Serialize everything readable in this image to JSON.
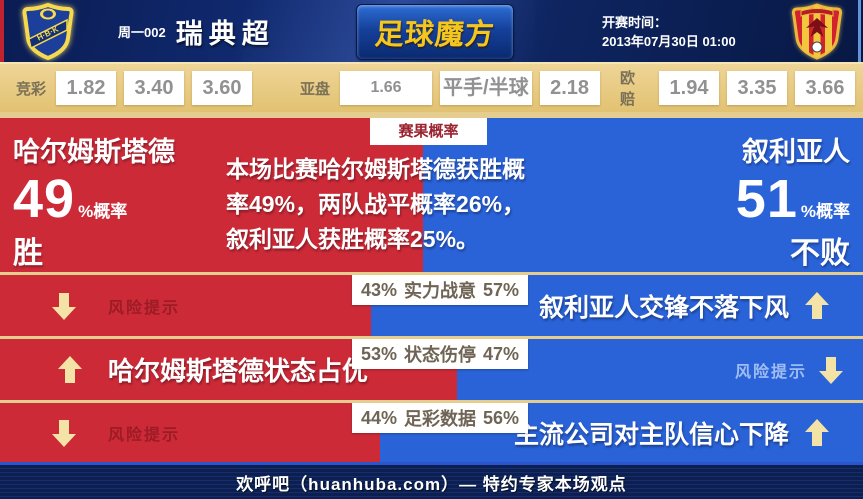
{
  "header": {
    "match_code": "周一002",
    "league": "瑞典超",
    "logo_text": "足球魔方",
    "kickoff_label": "开赛时间：",
    "kickoff_time": "2013年07月30日 01:00",
    "home_badge_icon": "halmstads-crest",
    "away_badge_icon": "syrianska-crest"
  },
  "odds_bar": {
    "groups": [
      {
        "label": "竞彩",
        "values": [
          "1.82",
          "3.40",
          "3.60"
        ]
      },
      {
        "label": "亚盘",
        "values": [
          "1.66",
          "平手/半球",
          "2.18"
        ]
      },
      {
        "label": "欧赔",
        "values": [
          "1.94",
          "3.35",
          "3.66"
        ]
      }
    ]
  },
  "result_section": {
    "badge": "赛果概率",
    "home": {
      "name": "哈尔姆斯塔德",
      "percent": "49",
      "suffix": "%概率",
      "outcome": "胜",
      "width": 49
    },
    "away": {
      "name": "叙利亚人",
      "percent": "51",
      "suffix": "%概率",
      "outcome": "不败",
      "width": 51
    },
    "summary": "本场比赛哈尔姆斯塔德获胜概率49%，两队战平概率26%，叙利亚人获胜概率25%。"
  },
  "factor_rows": [
    {
      "home_pct": "43%",
      "name": "实力战意",
      "away_pct": "57%",
      "home_width": 43,
      "message": "叙利亚人交锋不落下风",
      "message_side": "away",
      "message_arrow": "up-arrow",
      "risk_label": "风险提示",
      "risk_side": "home",
      "risk_arrow": "down-arrow"
    },
    {
      "home_pct": "53%",
      "name": "状态伤停",
      "away_pct": "47%",
      "home_width": 53,
      "message": "哈尔姆斯塔德状态占优",
      "message_side": "home",
      "message_arrow": "up-arrow",
      "risk_label": "风险提示",
      "risk_side": "away",
      "risk_arrow": "down-arrow"
    },
    {
      "home_pct": "44%",
      "name": "足彩数据",
      "away_pct": "56%",
      "home_width": 44,
      "message": "主流公司对主队信心下降",
      "message_side": "away",
      "message_arrow": "up-arrow",
      "risk_label": "风险提示",
      "risk_side": "home",
      "risk_arrow": "down-arrow"
    }
  ],
  "footer": {
    "text": "欢呼吧（huanhuba.com）— 特约专家本场观点"
  },
  "colors": {
    "home_red": "#cd2a38",
    "away_blue": "#2a62d8",
    "gold_bar": "#e7cc87",
    "arrow_gold": "#f3e3a6",
    "header_navy": "#10296e",
    "risk_red_text": "#9c1c26"
  }
}
